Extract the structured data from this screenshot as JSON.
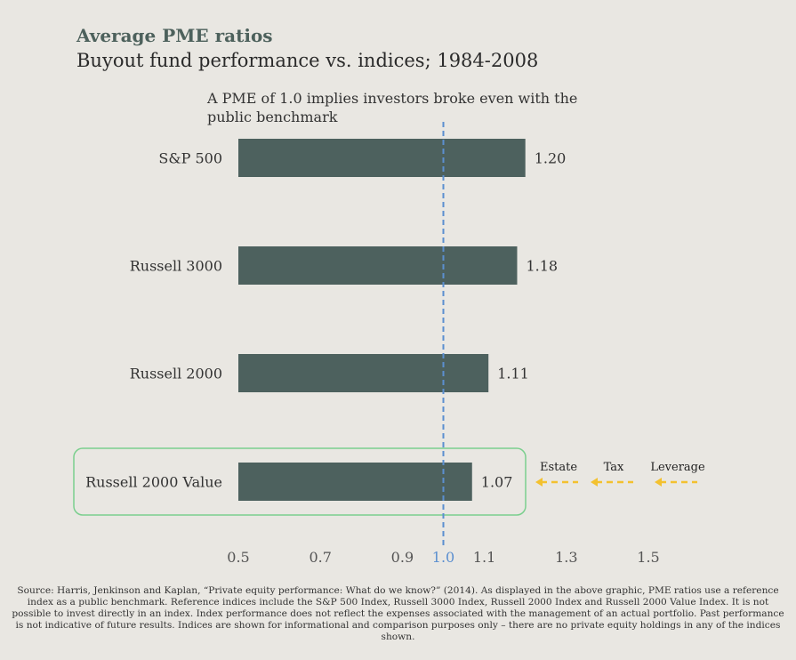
{
  "header": {
    "title": "Average PME ratios",
    "subtitle": "Buyout fund performance vs. indices; 1984-2008"
  },
  "chart_data": {
    "type": "bar",
    "orientation": "horizontal",
    "categories": [
      "S&P 500",
      "Russell 3000",
      "Russell 2000",
      "Russell 2000 Value"
    ],
    "values": [
      1.2,
      1.18,
      1.11,
      1.07
    ],
    "value_labels": [
      "1.20",
      "1.18",
      "1.11",
      "1.07"
    ],
    "xlim": [
      0.5,
      1.5
    ],
    "xticks": [
      {
        "value": 0.5,
        "label": "0.5"
      },
      {
        "value": 0.7,
        "label": "0.7"
      },
      {
        "value": 0.9,
        "label": "0.9"
      },
      {
        "value": 1.0,
        "label": "1.0",
        "highlight": true
      },
      {
        "value": 1.1,
        "label": "1.1"
      },
      {
        "value": 1.3,
        "label": "1.3"
      },
      {
        "value": 1.5,
        "label": "1.5"
      }
    ],
    "reference_line": {
      "value": 1.0,
      "label": "A PME of 1.0 implies investors broke even with the public benchmark"
    },
    "highlighted_category": "Russell 2000 Value",
    "factors": [
      "Estate",
      "Tax",
      "Leverage"
    ],
    "colors": {
      "bar": "#4d615e",
      "reference_line": "#5b8fd0",
      "highlight_box": "#7bcf8e",
      "arrows": "#f3c12f"
    }
  },
  "footnote": "Source: Harris, Jenkinson and Kaplan, “Private equity performance: What do we know?” (2014). As displayed in the above graphic, PME ratios use a reference index as a public benchmark. Reference indices include the S&P 500 Index, Russell 3000 Index, Russell 2000 Index and Russell 2000 Value Index. It is not possible to invest directly in an index. Index performance does not reflect the expenses associated with the management of an actual portfolio. Past performance is not indicative of future results. Indices are shown for informational and comparison purposes only – there are no private equity holdings in any of the indices shown."
}
